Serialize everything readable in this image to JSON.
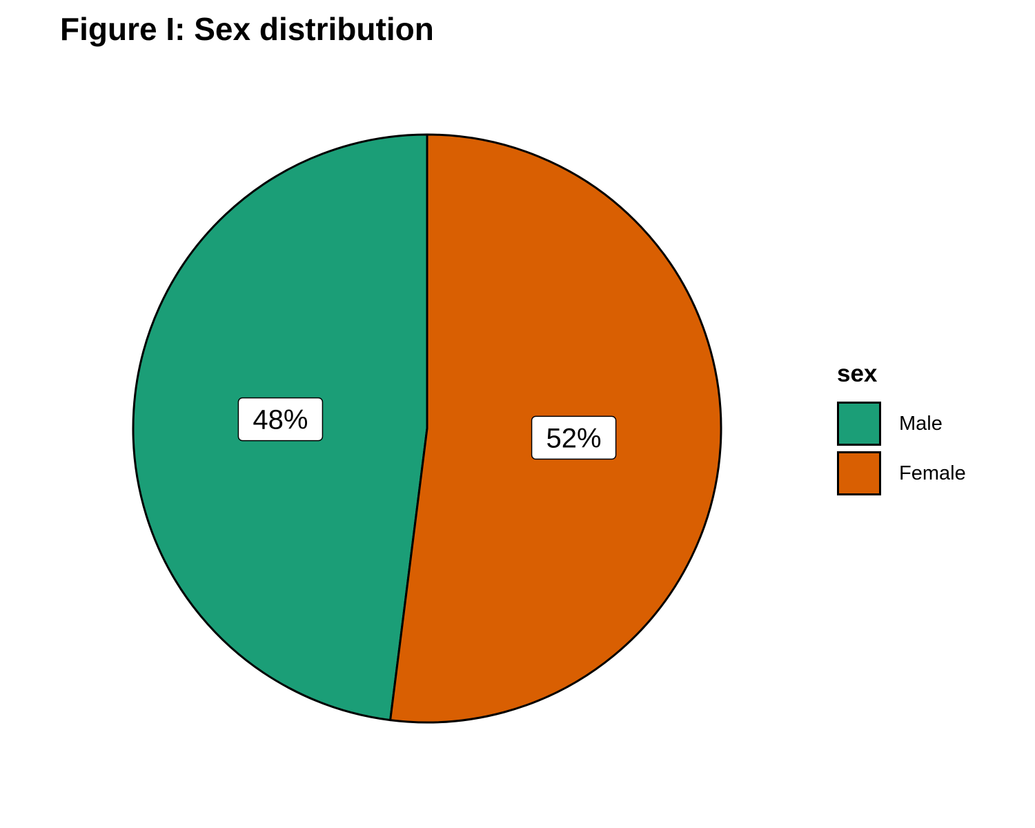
{
  "chart_data": {
    "type": "pie",
    "title": "Figure I: Sex distribution",
    "legend_title": "sex",
    "legend_position": "right",
    "slices": [
      {
        "label": "Male",
        "value": 48,
        "display": "48%",
        "color": "#1B9E77"
      },
      {
        "label": "Female",
        "value": 52,
        "display": "52%",
        "color": "#D95F02"
      }
    ]
  }
}
